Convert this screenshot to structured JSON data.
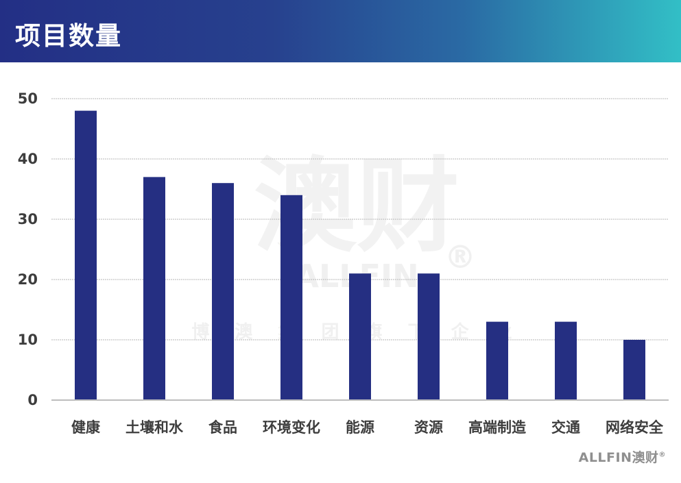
{
  "header": {
    "title": "项目数量"
  },
  "watermark": {
    "main": "澳财",
    "brand": "ALLFIN",
    "registered": "®",
    "tagline": "博 澳 集 团 旗 下 企 业"
  },
  "footer": {
    "logo_text": "ALLFIN澳财",
    "registered": "®"
  },
  "colors": {
    "bar": "#252f82",
    "header_start": "#232f85",
    "header_end": "#32bfc6",
    "grid": "#c4c4c4"
  },
  "chart_data": {
    "type": "bar",
    "categories": [
      "健康",
      "土壤和水",
      "食品",
      "环境变化",
      "能源",
      "资源",
      "高端制造",
      "交通",
      "网络安全"
    ],
    "values": [
      48,
      37,
      36,
      34,
      21,
      21,
      13,
      13,
      10
    ],
    "title": "项目数量",
    "xlabel": "",
    "ylabel": "",
    "ylim": [
      0,
      50
    ],
    "yticks": [
      0,
      10,
      20,
      30,
      40,
      50
    ],
    "grid": true,
    "legend": "none"
  }
}
